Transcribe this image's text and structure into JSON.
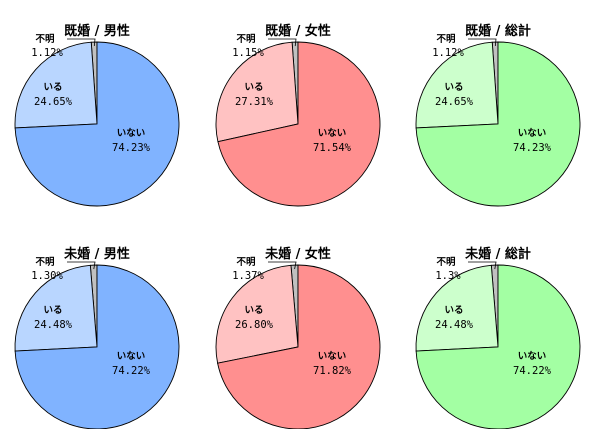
{
  "chart_data": [
    {
      "type": "pie",
      "title": "既婚 / 男性",
      "slices": [
        {
          "label": "いない",
          "value_text": "74.23%",
          "value": 74.23,
          "color": "#80b3ff"
        },
        {
          "label": "いる",
          "value_text": "24.65%",
          "value": 24.65,
          "color": "#b9d6ff"
        },
        {
          "label": "不明",
          "value_text": "1.12%",
          "value": 1.12,
          "color": "#c0c0c0"
        }
      ]
    },
    {
      "type": "pie",
      "title": "既婚 / 女性",
      "slices": [
        {
          "label": "いない",
          "value_text": "71.54%",
          "value": 71.54,
          "color": "#ff8f8f"
        },
        {
          "label": "いる",
          "value_text": "27.31%",
          "value": 27.31,
          "color": "#ffc2c2"
        },
        {
          "label": "不明",
          "value_text": "1.15%",
          "value": 1.15,
          "color": "#c0c0c0"
        }
      ]
    },
    {
      "type": "pie",
      "title": "既婚 / 総計",
      "slices": [
        {
          "label": "いない",
          "value_text": "74.23%",
          "value": 74.23,
          "color": "#a3ffa3"
        },
        {
          "label": "いる",
          "value_text": "24.65%",
          "value": 24.65,
          "color": "#ccffcc"
        },
        {
          "label": "不明",
          "value_text": "1.12%",
          "value": 1.12,
          "color": "#c0c0c0"
        }
      ]
    },
    {
      "type": "pie",
      "title": "未婚 / 男性",
      "slices": [
        {
          "label": "いない",
          "value_text": "74.22%",
          "value": 74.22,
          "color": "#80b3ff"
        },
        {
          "label": "いる",
          "value_text": "24.48%",
          "value": 24.48,
          "color": "#b9d6ff"
        },
        {
          "label": "不明",
          "value_text": "1.30%",
          "value": 1.3,
          "color": "#c0c0c0"
        }
      ]
    },
    {
      "type": "pie",
      "title": "未婚 / 女性",
      "slices": [
        {
          "label": "いない",
          "value_text": "71.82%",
          "value": 71.82,
          "color": "#ff8f8f"
        },
        {
          "label": "いる",
          "value_text": "26.80%",
          "value": 26.8,
          "color": "#ffc2c2"
        },
        {
          "label": "不明",
          "value_text": "1.37%",
          "value": 1.37,
          "color": "#c0c0c0"
        }
      ]
    },
    {
      "type": "pie",
      "title": "未婚 / 総計",
      "slices": [
        {
          "label": "いない",
          "value_text": "74.22%",
          "value": 74.22,
          "color": "#a3ffa3"
        },
        {
          "label": "いる",
          "value_text": "24.48%",
          "value": 24.48,
          "color": "#ccffcc"
        },
        {
          "label": "不明",
          "value_text": "1.3%",
          "value": 1.3,
          "color": "#c0c0c0"
        }
      ]
    }
  ]
}
